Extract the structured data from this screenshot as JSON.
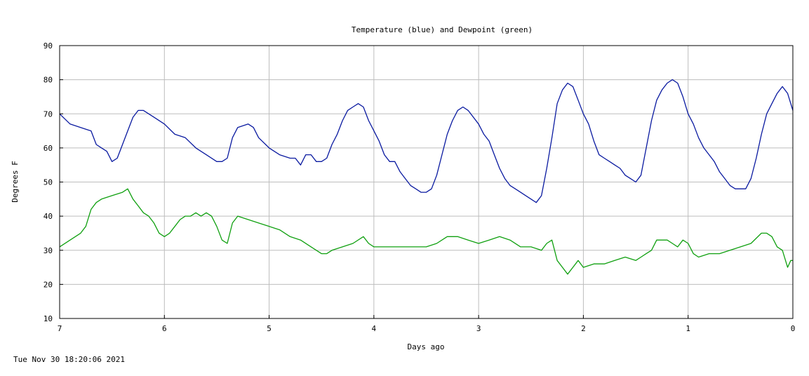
{
  "chart_data": {
    "type": "line",
    "title": "Temperature (blue) and Dewpoint (green)",
    "xlabel": "Days ago",
    "ylabel": "Degrees F",
    "xlim": [
      7,
      0
    ],
    "ylim": [
      10,
      90
    ],
    "x_ticks": [
      7,
      6,
      5,
      4,
      3,
      2,
      1,
      0
    ],
    "y_ticks": [
      10,
      20,
      30,
      40,
      50,
      60,
      70,
      80,
      90
    ],
    "grid": true,
    "series": [
      {
        "color": "#0a1aa0",
        "points": [
          [
            7.0,
            70
          ],
          [
            6.9,
            67
          ],
          [
            6.8,
            66
          ],
          [
            6.7,
            65
          ],
          [
            6.65,
            61
          ],
          [
            6.6,
            60
          ],
          [
            6.55,
            59
          ],
          [
            6.5,
            56
          ],
          [
            6.45,
            57
          ],
          [
            6.4,
            61
          ],
          [
            6.35,
            65
          ],
          [
            6.3,
            69
          ],
          [
            6.25,
            71
          ],
          [
            6.2,
            71
          ],
          [
            6.1,
            69
          ],
          [
            6.0,
            67
          ],
          [
            5.9,
            64
          ],
          [
            5.8,
            63
          ],
          [
            5.7,
            60
          ],
          [
            5.6,
            58
          ],
          [
            5.5,
            56
          ],
          [
            5.45,
            56
          ],
          [
            5.4,
            57
          ],
          [
            5.35,
            63
          ],
          [
            5.3,
            66
          ],
          [
            5.2,
            67
          ],
          [
            5.15,
            66
          ],
          [
            5.1,
            63
          ],
          [
            5.0,
            60
          ],
          [
            4.9,
            58
          ],
          [
            4.8,
            57
          ],
          [
            4.75,
            57
          ],
          [
            4.7,
            55
          ],
          [
            4.65,
            58
          ],
          [
            4.6,
            58
          ],
          [
            4.55,
            56
          ],
          [
            4.5,
            56
          ],
          [
            4.45,
            57
          ],
          [
            4.4,
            61
          ],
          [
            4.35,
            64
          ],
          [
            4.3,
            68
          ],
          [
            4.25,
            71
          ],
          [
            4.2,
            72
          ],
          [
            4.15,
            73
          ],
          [
            4.1,
            72
          ],
          [
            4.05,
            68
          ],
          [
            4.0,
            65
          ],
          [
            3.95,
            62
          ],
          [
            3.9,
            58
          ],
          [
            3.85,
            56
          ],
          [
            3.8,
            56
          ],
          [
            3.75,
            53
          ],
          [
            3.7,
            51
          ],
          [
            3.65,
            49
          ],
          [
            3.6,
            48
          ],
          [
            3.55,
            47
          ],
          [
            3.5,
            47
          ],
          [
            3.45,
            48
          ],
          [
            3.4,
            52
          ],
          [
            3.35,
            58
          ],
          [
            3.3,
            64
          ],
          [
            3.25,
            68
          ],
          [
            3.2,
            71
          ],
          [
            3.15,
            72
          ],
          [
            3.1,
            71
          ],
          [
            3.0,
            67
          ],
          [
            2.95,
            64
          ],
          [
            2.9,
            62
          ],
          [
            2.85,
            58
          ],
          [
            2.8,
            54
          ],
          [
            2.75,
            51
          ],
          [
            2.7,
            49
          ],
          [
            2.65,
            48
          ],
          [
            2.6,
            47
          ],
          [
            2.55,
            46
          ],
          [
            2.5,
            45
          ],
          [
            2.45,
            44
          ],
          [
            2.4,
            46
          ],
          [
            2.35,
            54
          ],
          [
            2.3,
            63
          ],
          [
            2.25,
            73
          ],
          [
            2.2,
            77
          ],
          [
            2.15,
            79
          ],
          [
            2.1,
            78
          ],
          [
            2.05,
            74
          ],
          [
            2.0,
            70
          ],
          [
            1.95,
            67
          ],
          [
            1.9,
            62
          ],
          [
            1.85,
            58
          ],
          [
            1.8,
            57
          ],
          [
            1.75,
            56
          ],
          [
            1.7,
            55
          ],
          [
            1.65,
            54
          ],
          [
            1.6,
            52
          ],
          [
            1.55,
            51
          ],
          [
            1.5,
            50
          ],
          [
            1.45,
            52
          ],
          [
            1.4,
            60
          ],
          [
            1.35,
            68
          ],
          [
            1.3,
            74
          ],
          [
            1.25,
            77
          ],
          [
            1.2,
            79
          ],
          [
            1.15,
            80
          ],
          [
            1.1,
            79
          ],
          [
            1.05,
            75
          ],
          [
            1.0,
            70
          ],
          [
            0.95,
            67
          ],
          [
            0.9,
            63
          ],
          [
            0.85,
            60
          ],
          [
            0.8,
            58
          ],
          [
            0.75,
            56
          ],
          [
            0.7,
            53
          ],
          [
            0.65,
            51
          ],
          [
            0.6,
            49
          ],
          [
            0.55,
            48
          ],
          [
            0.5,
            48
          ],
          [
            0.45,
            48
          ],
          [
            0.4,
            51
          ],
          [
            0.35,
            57
          ],
          [
            0.3,
            64
          ],
          [
            0.25,
            70
          ],
          [
            0.2,
            73
          ],
          [
            0.15,
            76
          ],
          [
            0.1,
            78
          ],
          [
            0.05,
            76
          ],
          [
            0.0,
            71
          ]
        ]
      },
      {
        "color": "#10a010",
        "points": [
          [
            7.0,
            31
          ],
          [
            6.9,
            33
          ],
          [
            6.8,
            35
          ],
          [
            6.75,
            37
          ],
          [
            6.7,
            42
          ],
          [
            6.65,
            44
          ],
          [
            6.6,
            45
          ],
          [
            6.5,
            46
          ],
          [
            6.4,
            47
          ],
          [
            6.35,
            48
          ],
          [
            6.3,
            45
          ],
          [
            6.25,
            43
          ],
          [
            6.2,
            41
          ],
          [
            6.15,
            40
          ],
          [
            6.1,
            38
          ],
          [
            6.05,
            35
          ],
          [
            6.0,
            34
          ],
          [
            5.95,
            35
          ],
          [
            5.9,
            37
          ],
          [
            5.85,
            39
          ],
          [
            5.8,
            40
          ],
          [
            5.75,
            40
          ],
          [
            5.7,
            41
          ],
          [
            5.65,
            40
          ],
          [
            5.6,
            41
          ],
          [
            5.55,
            40
          ],
          [
            5.5,
            37
          ],
          [
            5.45,
            33
          ],
          [
            5.4,
            32
          ],
          [
            5.35,
            38
          ],
          [
            5.3,
            40
          ],
          [
            5.2,
            39
          ],
          [
            5.1,
            38
          ],
          [
            5.0,
            37
          ],
          [
            4.9,
            36
          ],
          [
            4.8,
            34
          ],
          [
            4.7,
            33
          ],
          [
            4.6,
            31
          ],
          [
            4.5,
            29
          ],
          [
            4.45,
            29
          ],
          [
            4.4,
            30
          ],
          [
            4.3,
            31
          ],
          [
            4.2,
            32
          ],
          [
            4.1,
            34
          ],
          [
            4.05,
            32
          ],
          [
            4.0,
            31
          ],
          [
            3.9,
            31
          ],
          [
            3.8,
            31
          ],
          [
            3.6,
            31
          ],
          [
            3.5,
            31
          ],
          [
            3.4,
            32
          ],
          [
            3.3,
            34
          ],
          [
            3.2,
            34
          ],
          [
            3.1,
            33
          ],
          [
            3.0,
            32
          ],
          [
            2.9,
            33
          ],
          [
            2.8,
            34
          ],
          [
            2.7,
            33
          ],
          [
            2.6,
            31
          ],
          [
            2.5,
            31
          ],
          [
            2.4,
            30
          ],
          [
            2.35,
            32
          ],
          [
            2.3,
            33
          ],
          [
            2.25,
            27
          ],
          [
            2.2,
            25
          ],
          [
            2.15,
            23
          ],
          [
            2.1,
            25
          ],
          [
            2.05,
            27
          ],
          [
            2.0,
            25
          ],
          [
            1.9,
            26
          ],
          [
            1.8,
            26
          ],
          [
            1.7,
            27
          ],
          [
            1.6,
            28
          ],
          [
            1.5,
            27
          ],
          [
            1.45,
            28
          ],
          [
            1.4,
            29
          ],
          [
            1.35,
            30
          ],
          [
            1.3,
            33
          ],
          [
            1.2,
            33
          ],
          [
            1.15,
            32
          ],
          [
            1.1,
            31
          ],
          [
            1.05,
            33
          ],
          [
            1.0,
            32
          ],
          [
            0.95,
            29
          ],
          [
            0.9,
            28
          ],
          [
            0.8,
            29
          ],
          [
            0.7,
            29
          ],
          [
            0.6,
            30
          ],
          [
            0.5,
            31
          ],
          [
            0.4,
            32
          ],
          [
            0.3,
            35
          ],
          [
            0.25,
            35
          ],
          [
            0.2,
            34
          ],
          [
            0.15,
            31
          ],
          [
            0.1,
            30
          ],
          [
            0.05,
            25
          ],
          [
            0.02,
            27
          ],
          [
            0.0,
            27
          ]
        ]
      }
    ]
  },
  "footer": {
    "timestamp": "Tue Nov 30 18:20:06 2021"
  }
}
